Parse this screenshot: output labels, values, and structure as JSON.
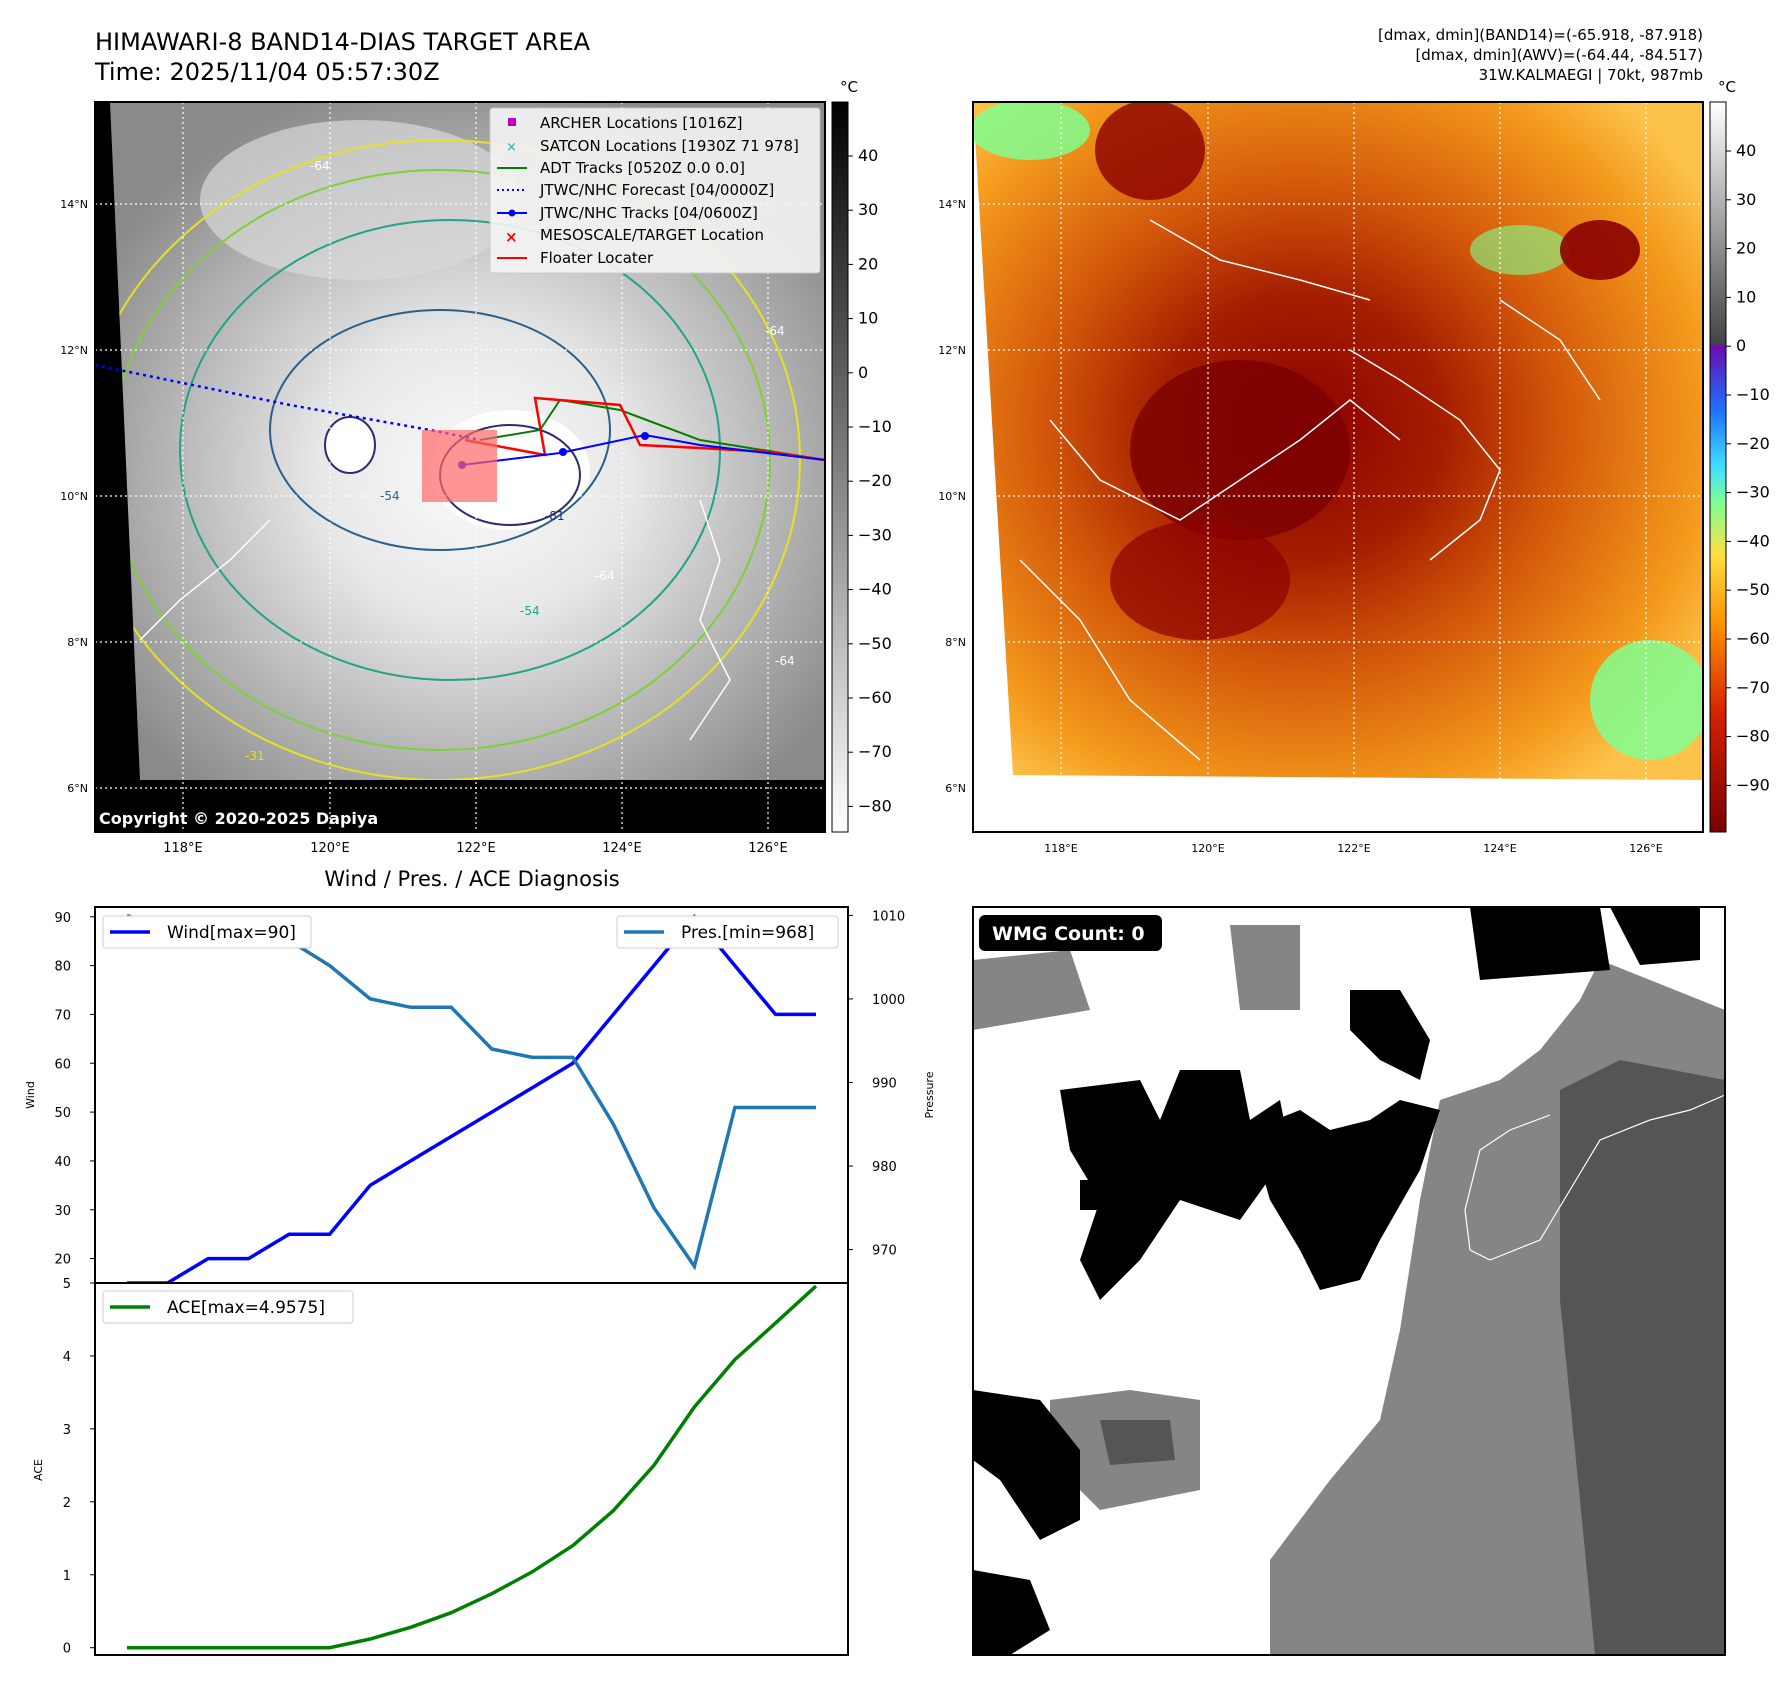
{
  "header": {
    "title": "HIMAWARI-8 BAND14-DIAS TARGET AREA",
    "time": "Time: 2025/11/04 05:57:30Z",
    "stats": [
      "[dmax, dmin](BAND14)=(-65.918, -87.918)",
      "[dmax, dmin](AWV)=(-64.44, -84.517)",
      "31W.KALMAEGI | 70kt, 987mb"
    ]
  },
  "map": {
    "lon_ticks": [
      "118°E",
      "120°E",
      "122°E",
      "124°E",
      "126°E"
    ],
    "lat_ticks": [
      "14°N",
      "12°N",
      "10°N",
      "8°N",
      "6°N"
    ],
    "copyright": "Copyright © 2020-2025 Dapiya",
    "unit": "°C",
    "gray_colorbar_ticks": [
      "40",
      "30",
      "20",
      "10",
      "0",
      "−10",
      "−20",
      "−30",
      "−40",
      "−50",
      "−60",
      "−70",
      "−80"
    ],
    "color_colorbar_ticks": [
      "40",
      "30",
      "20",
      "10",
      "0",
      "−10",
      "−20",
      "−30",
      "−40",
      "−50",
      "−60",
      "−70",
      "−80",
      "−90"
    ],
    "contour_labels": [
      "-64",
      "-64",
      "-81",
      "-54",
      "-64",
      "-54",
      "-31",
      "-64"
    ],
    "colors": {
      "gray_high": "#000000",
      "gray_low": "#ffffff",
      "orange": "#f08a10",
      "dark_red": "#8b0000",
      "floater": "#ff0000",
      "track_blue": "#0000ff",
      "adt_green": "#008000"
    }
  },
  "legend": {
    "items": [
      {
        "label": "ARCHER Locations [1016Z]",
        "symbol": "square",
        "color": "#bf00bf"
      },
      {
        "label": "SATCON Locations [1930Z 71 978]",
        "symbol": "x",
        "color": "#00bfbf"
      },
      {
        "label": "ADT Tracks [0520Z 0.0 0.0]",
        "symbol": "line",
        "color": "#008000"
      },
      {
        "label": "JTWC/NHC Forecast [04/0000Z]",
        "symbol": "dotted",
        "color": "#0000ff"
      },
      {
        "label": "JTWC/NHC Tracks [04/0600Z]",
        "symbol": "line-dot",
        "color": "#0000ff"
      },
      {
        "label": "MESOSCALE/TARGET Location",
        "symbol": "x",
        "color": "#ff0000"
      },
      {
        "label": "Floater Locater",
        "symbol": "line",
        "color": "#ff0000"
      }
    ]
  },
  "wmg": {
    "label": "WMG Count: 0"
  },
  "chart_data": [
    {
      "type": "line",
      "title": "Wind / Pres. / ACE Diagnosis",
      "ylabel": "Wind",
      "ylim": [
        15,
        92
      ],
      "y_ticks": [
        20,
        30,
        40,
        50,
        60,
        70,
        80,
        90
      ],
      "series": [
        {
          "name": "Wind[max=90]",
          "color": "#0000ff",
          "values": [
            15,
            15,
            20,
            20,
            25,
            25,
            35,
            40,
            45,
            50,
            55,
            60,
            70,
            80,
            90,
            80,
            70,
            70
          ]
        }
      ]
    },
    {
      "type": "line",
      "ylabel": "Pressure",
      "ylim": [
        966,
        1011
      ],
      "y_ticks": [
        970,
        980,
        990,
        1000,
        1010
      ],
      "series": [
        {
          "name": "Pres.[min=968]",
          "color": "#1f77b4",
          "values": [
            1010,
            1008,
            1008,
            1008,
            1007,
            1004,
            1000,
            999,
            999,
            994,
            993,
            993,
            985,
            975,
            968,
            987,
            987,
            987
          ]
        }
      ]
    },
    {
      "type": "line",
      "ylabel": "ACE",
      "ylim": [
        -0.1,
        5.0
      ],
      "y_ticks": [
        0,
        1,
        2,
        3,
        4,
        5
      ],
      "series": [
        {
          "name": "ACE[max=4.9575]",
          "color": "#008000",
          "values": [
            0,
            0,
            0,
            0,
            0,
            0,
            0.12,
            0.28,
            0.48,
            0.74,
            1.04,
            1.4,
            1.88,
            2.5,
            3.3,
            3.95,
            4.45,
            4.9575
          ]
        }
      ]
    }
  ]
}
